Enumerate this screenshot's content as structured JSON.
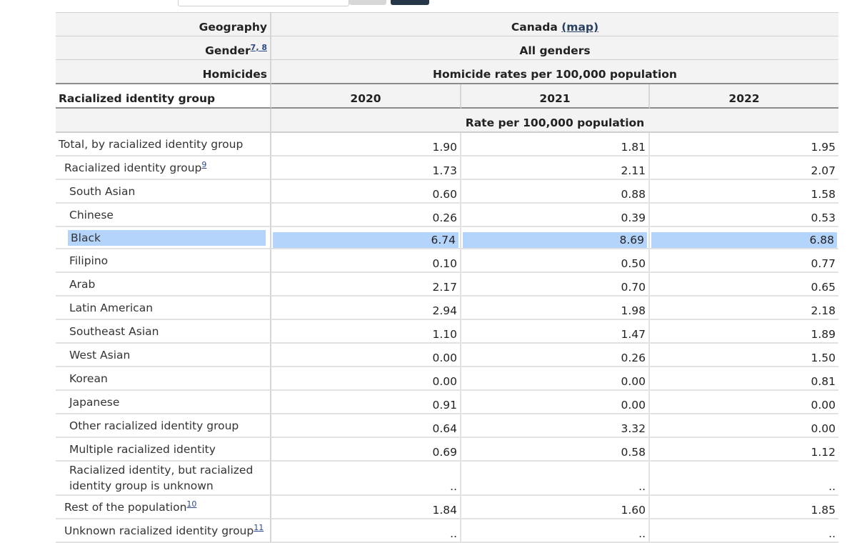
{
  "header": {
    "geography_label": "Geography",
    "gender_label": "Gender",
    "gender_footnotes": "7, 8",
    "homicides_label": "Homicides",
    "rowhead_label": "Racialized identity group",
    "geography_value": "Canada",
    "map_link": "(map)",
    "gender_value": "All genders",
    "homicides_value": "Homicide rates per 100,000 population",
    "years": [
      "2020",
      "2021",
      "2022"
    ],
    "unit": "Rate per 100,000 population"
  },
  "rows": [
    {
      "label": "Total, by racialized identity group",
      "values": [
        "1.90",
        "1.81",
        "1.95"
      ]
    },
    {
      "label": "Racialized identity group",
      "footnote": "9",
      "values": [
        "1.73",
        "2.11",
        "2.07"
      ]
    },
    {
      "label": "South Asian",
      "values": [
        "0.60",
        "0.88",
        "1.58"
      ]
    },
    {
      "label": "Chinese",
      "values": [
        "0.26",
        "0.39",
        "0.53"
      ]
    },
    {
      "label": "Black",
      "values": [
        "6.74",
        "8.69",
        "6.88"
      ]
    },
    {
      "label": "Filipino",
      "values": [
        "0.10",
        "0.50",
        "0.77"
      ]
    },
    {
      "label": "Arab",
      "values": [
        "2.17",
        "0.70",
        "0.65"
      ]
    },
    {
      "label": "Latin American",
      "values": [
        "2.94",
        "1.98",
        "2.18"
      ]
    },
    {
      "label": "Southeast Asian",
      "values": [
        "1.10",
        "1.47",
        "1.89"
      ]
    },
    {
      "label": "West Asian",
      "values": [
        "0.00",
        "0.26",
        "1.50"
      ]
    },
    {
      "label": "Korean",
      "values": [
        "0.00",
        "0.00",
        "0.81"
      ]
    },
    {
      "label": "Japanese",
      "values": [
        "0.91",
        "0.00",
        "0.00"
      ]
    },
    {
      "label": "Other racialized identity group",
      "values": [
        "0.64",
        "3.32",
        "0.00"
      ]
    },
    {
      "label": "Multiple racialized identity",
      "values": [
        "0.69",
        "0.58",
        "1.12"
      ]
    },
    {
      "label": "Racialized identity, but racialized identity group is unknown",
      "values": [
        "..",
        "..",
        ".."
      ]
    },
    {
      "label": "Rest of the population",
      "footnote": "10",
      "values": [
        "1.84",
        "1.60",
        "1.85"
      ]
    },
    {
      "label": "Unknown racialized identity group",
      "footnote": "11",
      "values": [
        "..",
        "..",
        ".."
      ]
    }
  ]
}
